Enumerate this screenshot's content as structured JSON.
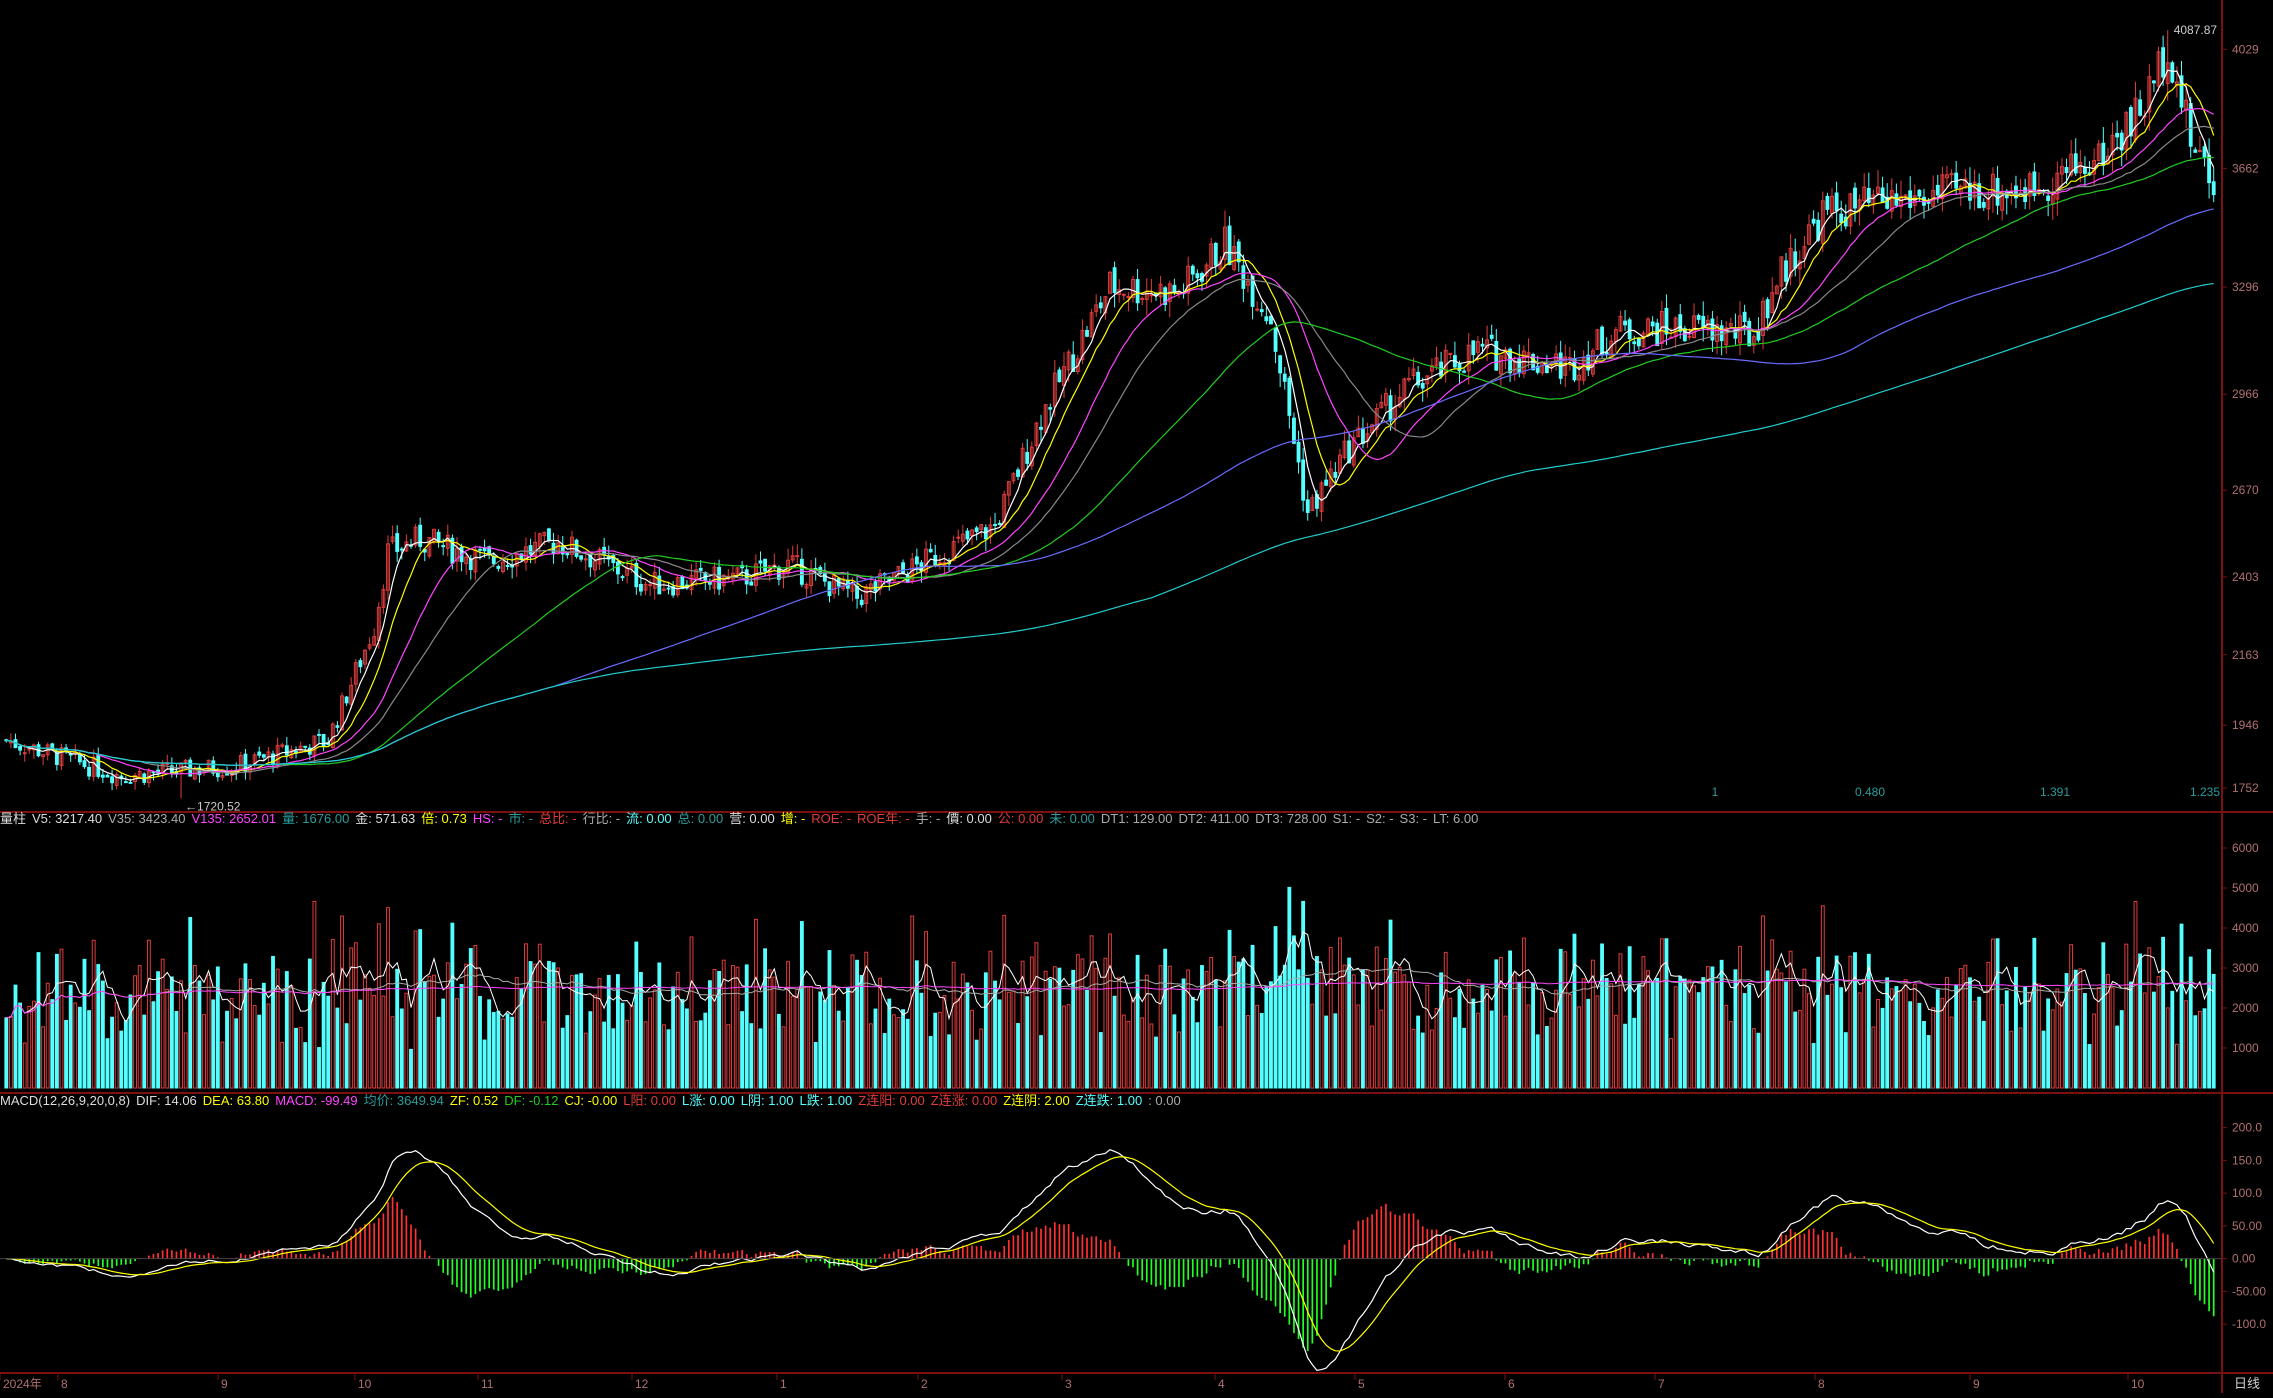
{
  "colors": {
    "background": "#000000",
    "up": "#e03c3c",
    "down": "#54ffff",
    "grid_line": "#7a1010",
    "axis_text": "#b07070",
    "ma5": "#ffffff",
    "ma10": "#ffff00",
    "ma20": "#ff44ff",
    "ma30": "#888888",
    "ma60": "#22cc22",
    "ma120": "#6a6aff",
    "ma250": "#22cccc",
    "macd_pos": "#ff3030",
    "macd_neg": "#22ff22",
    "dif": "#ffffff",
    "dea": "#ffff00"
  },
  "price_panel": {
    "y_ticks": [
      "4029",
      "3662",
      "3296",
      "2966",
      "2670",
      "2403",
      "2163",
      "1946",
      "1752"
    ],
    "high_label": "4087.87",
    "low_label": "←1720.52",
    "bottom_scale": [
      "1",
      "0.480",
      "1.391",
      "1.235"
    ]
  },
  "volume_info": {
    "items": [
      {
        "label": "量柱",
        "value": "",
        "color": "#dddddd"
      },
      {
        "label": "V5:",
        "value": "3217.40",
        "color": "#dddddd"
      },
      {
        "label": "V35:",
        "value": "3423.40",
        "color": "#aaaaaa"
      },
      {
        "label": "V135:",
        "value": "2652.01",
        "color": "#ff44ff"
      },
      {
        "label": "量:",
        "value": "1676.00",
        "color": "#2a9c9c"
      },
      {
        "label": "金:",
        "value": "571.63",
        "color": "#dddddd"
      },
      {
        "label": "倍:",
        "value": "0.73",
        "color": "#ffff00"
      },
      {
        "label": "HS:",
        "value": "-",
        "color": "#ff44ff"
      },
      {
        "label": "市:",
        "value": "-",
        "color": "#2a9c9c"
      },
      {
        "label": "总比:",
        "value": "-",
        "color": "#e03c3c"
      },
      {
        "label": "行比:",
        "value": "-",
        "color": "#aaaaaa"
      },
      {
        "label": "流:",
        "value": "0.00",
        "color": "#54ffff"
      },
      {
        "label": "总:",
        "value": "0.00",
        "color": "#2a9c9c"
      },
      {
        "label": "营:",
        "value": "0.00",
        "color": "#dddddd"
      },
      {
        "label": "增:",
        "value": "-",
        "color": "#ffff00"
      },
      {
        "label": "ROE:",
        "value": "-",
        "color": "#e03c3c"
      },
      {
        "label": "ROE年:",
        "value": "-",
        "color": "#e03c3c"
      },
      {
        "label": "手:",
        "value": "-",
        "color": "#aaaaaa"
      },
      {
        "label": "價:",
        "value": "0.00",
        "color": "#dddddd"
      },
      {
        "label": "公:",
        "value": "0.00",
        "color": "#e03c3c"
      },
      {
        "label": "未:",
        "value": "0.00",
        "color": "#2a9c9c"
      },
      {
        "label": "DT1:",
        "value": "129.00",
        "color": "#aaaaaa"
      },
      {
        "label": "DT2:",
        "value": "411.00",
        "color": "#aaaaaa"
      },
      {
        "label": "DT3:",
        "value": "728.00",
        "color": "#aaaaaa"
      },
      {
        "label": "S1:",
        "value": "-",
        "color": "#aaaaaa"
      },
      {
        "label": "S2:",
        "value": "-",
        "color": "#aaaaaa"
      },
      {
        "label": "S3:",
        "value": "-",
        "color": "#aaaaaa"
      },
      {
        "label": "LT:",
        "value": "6.00",
        "color": "#aaaaaa"
      }
    ],
    "y_ticks": [
      "6000",
      "5000",
      "4000",
      "3000",
      "2000",
      "1000"
    ]
  },
  "macd_info": {
    "items": [
      {
        "label": "MACD(12,26,9,20,0,8)",
        "value": "",
        "color": "#dddddd"
      },
      {
        "label": "DIF:",
        "value": "14.06",
        "color": "#dddddd"
      },
      {
        "label": "DEA:",
        "value": "63.80",
        "color": "#ffff00"
      },
      {
        "label": "MACD:",
        "value": "-99.49",
        "color": "#ff44ff"
      },
      {
        "label": "均价:",
        "value": "3649.94",
        "color": "#2a9c9c"
      },
      {
        "label": "ZF:",
        "value": "0.52",
        "color": "#ffff00"
      },
      {
        "label": "DF:",
        "value": "-0.12",
        "color": "#22cc22"
      },
      {
        "label": "CJ:",
        "value": "-0.00",
        "color": "#ffff00"
      },
      {
        "label": "L阳:",
        "value": "0.00",
        "color": "#e03c3c"
      },
      {
        "label": "L涨:",
        "value": "0.00",
        "color": "#54ffff"
      },
      {
        "label": "L阴:",
        "value": "1.00",
        "color": "#54ffff"
      },
      {
        "label": "L跌:",
        "value": "1.00",
        "color": "#54ffff"
      },
      {
        "label": "Z连阳:",
        "value": "0.00",
        "color": "#e03c3c"
      },
      {
        "label": "Z连涨:",
        "value": "0.00",
        "color": "#e03c3c"
      },
      {
        "label": "Z连阴:",
        "value": "2.00",
        "color": "#ffff00"
      },
      {
        "label": "Z连跌:",
        "value": "1.00",
        "color": "#54ffff"
      },
      {
        "label": ":",
        "value": "0.00",
        "color": "#aaaaaa"
      }
    ],
    "y_ticks": [
      "200.0",
      "150.0",
      "100.0",
      "50.00",
      "0.00",
      "-50.00",
      "-100.0"
    ]
  },
  "time_axis": {
    "labels": [
      "2024年",
      "8",
      "9",
      "10",
      "11",
      "12",
      "1",
      "2",
      "3",
      "4",
      "5",
      "6",
      "7",
      "8",
      "9",
      "10"
    ],
    "period": "日线"
  },
  "chart_data": {
    "type": "candlestick",
    "series_summary": {
      "start_value": 1900,
      "low": 1720.52,
      "high": 4087.87,
      "last_close": 3662
    },
    "anchors": [
      [
        0,
        1900
      ],
      [
        25,
        1790
      ],
      [
        50,
        1820
      ],
      [
        70,
        1900
      ],
      [
        80,
        2250
      ],
      [
        83,
        2480
      ],
      [
        90,
        2520
      ],
      [
        105,
        2450
      ],
      [
        120,
        2510
      ],
      [
        140,
        2380
      ],
      [
        160,
        2400
      ],
      [
        170,
        2440
      ],
      [
        185,
        2340
      ],
      [
        200,
        2450
      ],
      [
        215,
        2560
      ],
      [
        225,
        2900
      ],
      [
        240,
        3300
      ],
      [
        255,
        3280
      ],
      [
        265,
        3430
      ],
      [
        275,
        3200
      ],
      [
        283,
        2600
      ],
      [
        292,
        2800
      ],
      [
        305,
        2990
      ],
      [
        320,
        3100
      ],
      [
        340,
        3050
      ],
      [
        350,
        3160
      ],
      [
        365,
        3170
      ],
      [
        380,
        3150
      ],
      [
        385,
        3320
      ],
      [
        395,
        3520
      ],
      [
        410,
        3560
      ],
      [
        425,
        3590
      ],
      [
        440,
        3600
      ],
      [
        455,
        3690
      ],
      [
        465,
        3860
      ],
      [
        470,
        4050
      ],
      [
        475,
        3750
      ],
      [
        480,
        3620
      ]
    ],
    "y_range": [
      1700,
      4150
    ],
    "volume_range": [
      0,
      6500
    ],
    "macd_range": [
      -170,
      230
    ]
  }
}
